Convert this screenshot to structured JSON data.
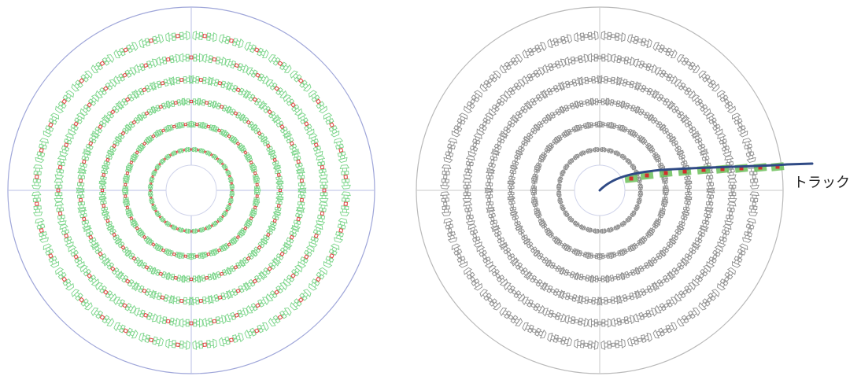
{
  "labels": {
    "track": "トラック"
  },
  "colors": {
    "outer_circle": "#9fa6d9",
    "axis_line": "#b9bfe6",
    "pad_green": "#7bd58a",
    "pad_red": "#e24040",
    "pad_gray": "#8e8e8e",
    "track_line": "#2f4a85",
    "track_green": "#6cbf5a",
    "track_red": "#d32d2d"
  },
  "panels": [
    {
      "name": "left-detector-view",
      "style": "green-red-pads"
    },
    {
      "name": "right-detector-view",
      "style": "gray-pads-with-track"
    }
  ]
}
